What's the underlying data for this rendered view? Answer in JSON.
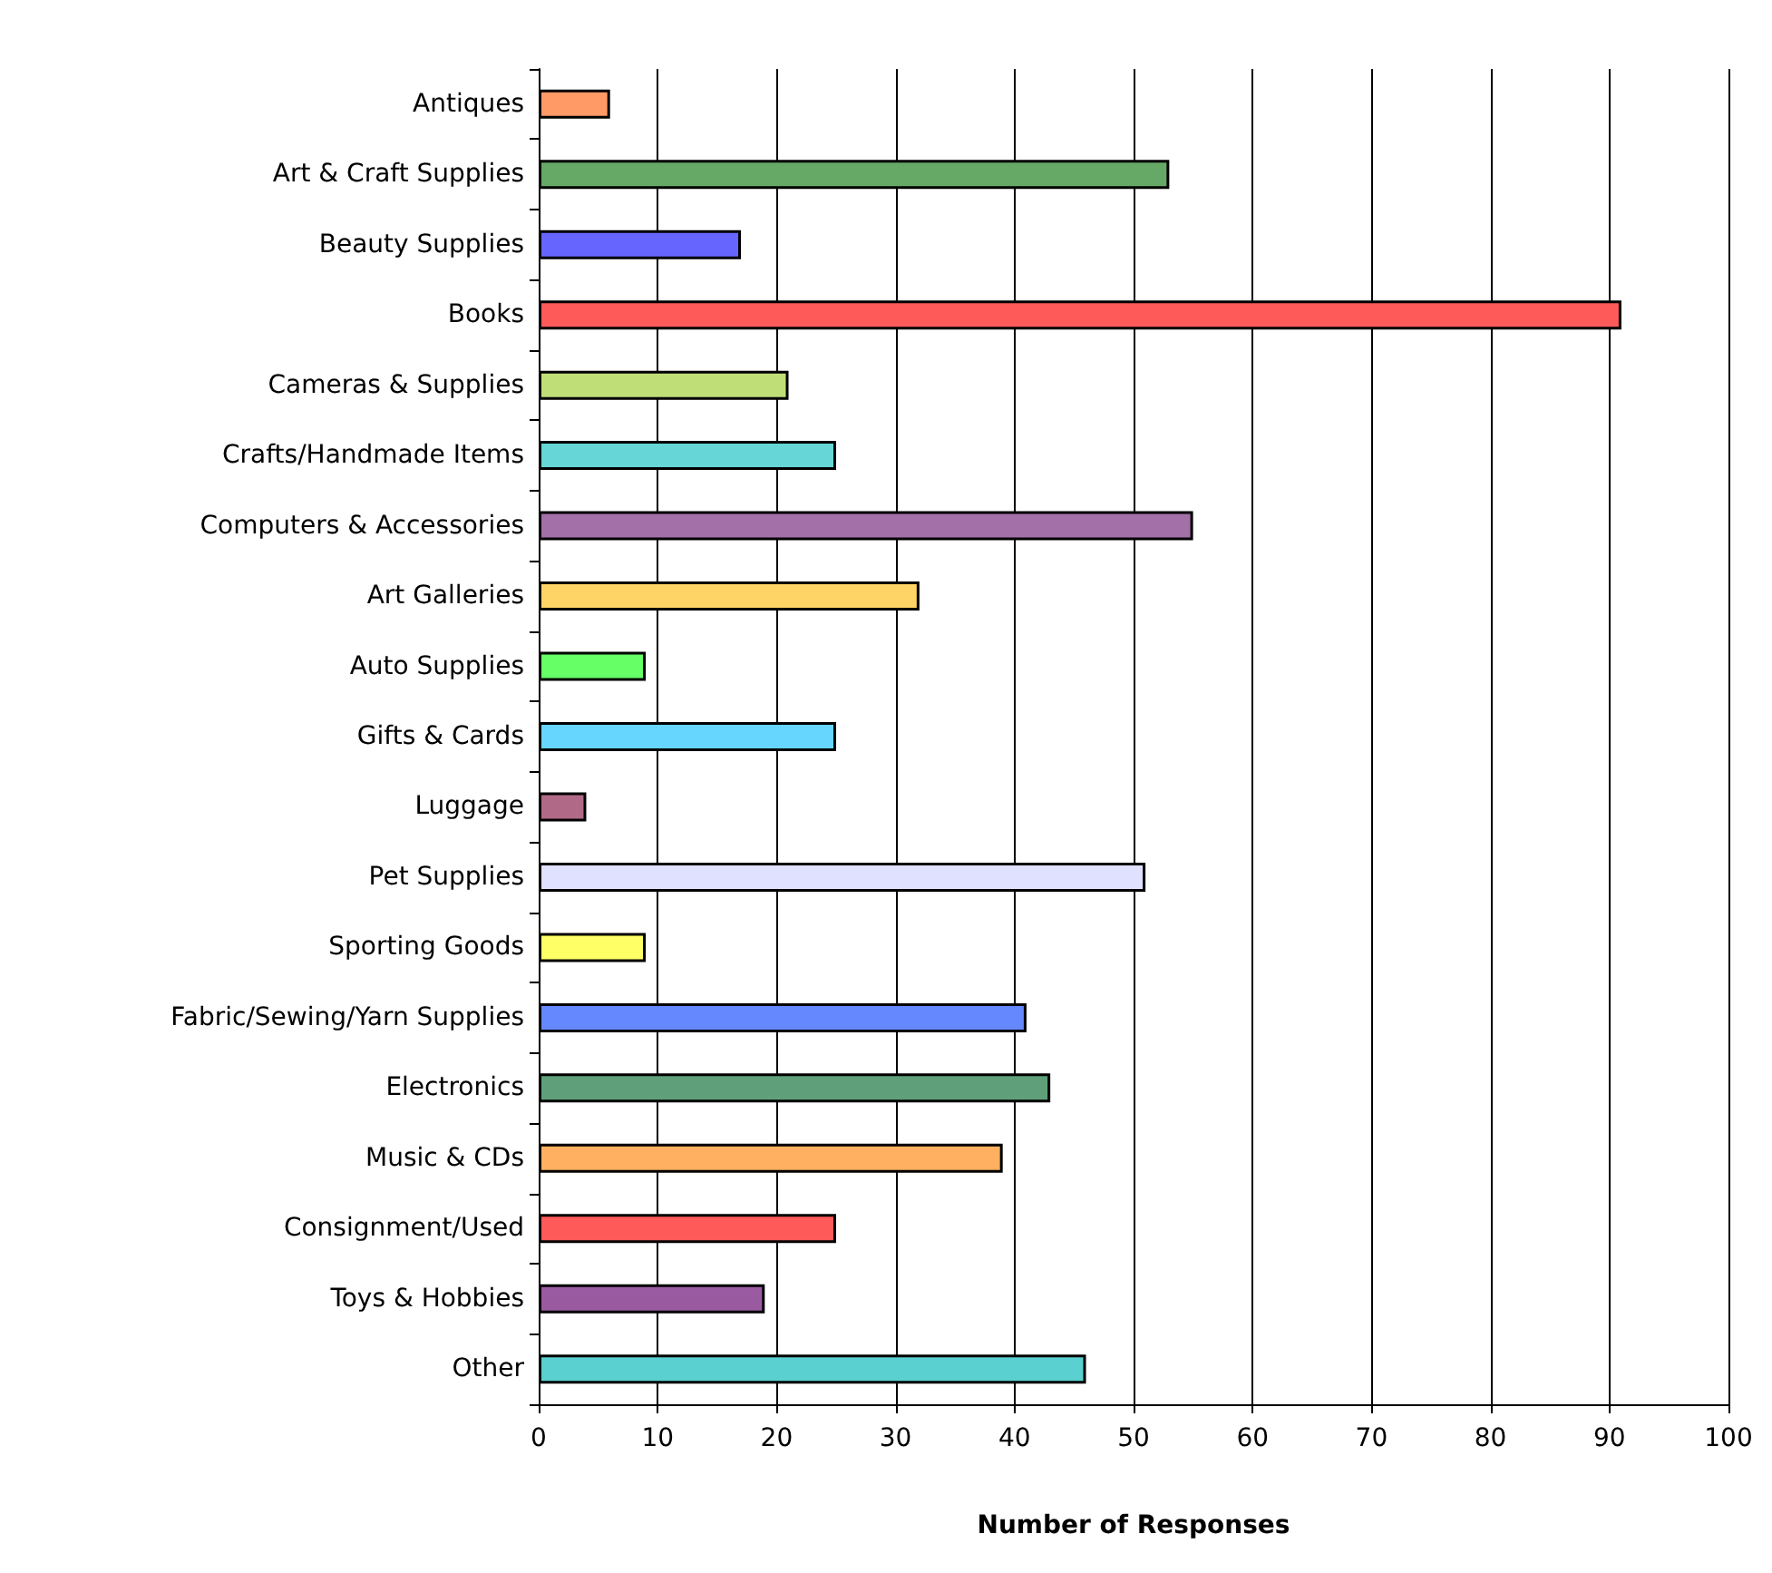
{
  "chart_data": {
    "type": "bar",
    "orientation": "horizontal",
    "xlabel": "Number of Responses",
    "categories": [
      "Antiques",
      "Art & Craft Supplies",
      "Beauty Supplies",
      "Books",
      "Cameras & Supplies",
      "Crafts/Handmade Items",
      "Computers & Accessories",
      "Art Galleries",
      "Auto Supplies",
      "Gifts & Cards",
      "Luggage",
      "Pet Supplies",
      "Sporting Goods",
      "Fabric/Sewing/Yarn Supplies",
      "Electronics",
      "Music & CDs",
      "Consignment/Used",
      "Toys & Hobbies",
      "Other"
    ],
    "values": [
      6,
      53,
      17,
      91,
      21,
      25,
      55,
      32,
      9,
      25,
      4,
      51,
      9,
      41,
      43,
      39,
      25,
      19,
      46
    ],
    "colors": [
      "#ff9966",
      "#66a866",
      "#6666ff",
      "#ff5a5a",
      "#c0de78",
      "#66d6d6",
      "#a470a8",
      "#ffd466",
      "#66ff66",
      "#66d6ff",
      "#b06a88",
      "#e0e0ff",
      "#ffff66",
      "#6688ff",
      "#5fa07a",
      "#ffb060",
      "#ff5a5a",
      "#9a5aa0",
      "#5ad0d0"
    ],
    "xlim": [
      0,
      100
    ],
    "xticks": [
      0,
      10,
      20,
      30,
      40,
      50,
      60,
      70,
      80,
      90,
      100
    ],
    "grid": "x"
  }
}
